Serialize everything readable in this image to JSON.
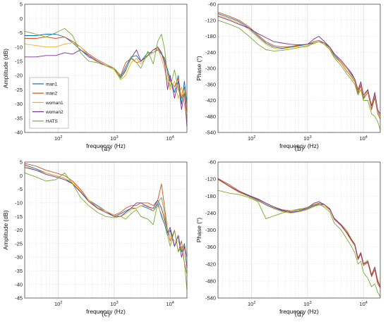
{
  "colors": {
    "man1": "#0072BD",
    "man2": "#D95319",
    "woman1": "#EDB120",
    "woman2": "#7E2F8E",
    "HATS": "#77AC30"
  },
  "legend": [
    "man1",
    "man2",
    "woman1",
    "woman2",
    "HATS"
  ],
  "chart_data": [
    {
      "panel": "(a)",
      "type": "line",
      "xscale": "log",
      "xlim": [
        25,
        20000
      ],
      "ylim": [
        -40,
        5
      ],
      "xlabel": "frequency (Hz)",
      "ylabel": "Amplitude (dB)",
      "grid": true,
      "legend_position": "left-middle",
      "yticks": [
        5,
        0,
        -5,
        -10,
        -15,
        -20,
        -25,
        -30,
        -35,
        -40
      ],
      "x": [
        25,
        40,
        60,
        90,
        130,
        180,
        250,
        350,
        500,
        700,
        1000,
        1300,
        1600,
        2000,
        2500,
        3000,
        4000,
        5000,
        6000,
        7000,
        8000,
        9000,
        10000,
        12000,
        14000,
        16000,
        18000,
        20000
      ],
      "series": [
        {
          "name": "man1",
          "values": [
            -6,
            -6,
            -5.5,
            -5.5,
            -6.5,
            -8.5,
            -11,
            -13.5,
            -15,
            -16.5,
            -18,
            -20.5,
            -17,
            -13.5,
            -13,
            -15,
            -12,
            -12,
            -11,
            -12.5,
            -14,
            -18,
            -21,
            -26,
            -20,
            -30,
            -22,
            -30
          ]
        },
        {
          "name": "man2",
          "values": [
            -7,
            -7,
            -6.5,
            -7,
            -6.5,
            -8,
            -10,
            -12.5,
            -14.5,
            -16,
            -17.5,
            -20,
            -15.5,
            -14,
            -15.5,
            -15,
            -13,
            -11,
            -10.5,
            -12,
            -15,
            -19,
            -22,
            -24,
            -21,
            -28,
            -24,
            -33
          ]
        },
        {
          "name": "woman1",
          "values": [
            -9,
            -9.5,
            -10,
            -10,
            -9,
            -8.5,
            -10,
            -13,
            -15.5,
            -16.5,
            -18,
            -21.5,
            -20,
            -15.5,
            -14,
            -16,
            -13,
            -12,
            -10.5,
            -14,
            -18,
            -22,
            -25,
            -22,
            -28,
            -24,
            -30,
            -35
          ]
        },
        {
          "name": "woman2",
          "values": [
            -13.5,
            -13.5,
            -13,
            -13,
            -12,
            -12.5,
            -11,
            -13,
            -15,
            -16.5,
            -17.5,
            -21,
            -18,
            -14,
            -11,
            -15,
            -13,
            -11,
            -10,
            -12,
            -16,
            -25,
            -20,
            -28,
            -22,
            -32,
            -26,
            -38
          ]
        },
        {
          "name": "HATS",
          "values": [
            -4.5,
            -5.5,
            -6.5,
            -5,
            -3.5,
            -6,
            -12,
            -15,
            -15.5,
            -16.5,
            -17.5,
            -21,
            -18.5,
            -13.5,
            -15.5,
            -17.5,
            -11.5,
            -16,
            -8,
            -5.5,
            -11,
            -20,
            -24,
            -18,
            -25,
            -28,
            -26,
            -30
          ]
        }
      ]
    },
    {
      "panel": "(b)",
      "type": "line",
      "xscale": "log",
      "xlim": [
        25,
        20000
      ],
      "ylim": [
        -540,
        -60
      ],
      "xlabel": "frequency (Hz)",
      "ylabel": "Phase (°)",
      "grid": true,
      "yticks": [
        -60,
        -120,
        -180,
        -240,
        -300,
        -360,
        -420,
        -480,
        -540
      ],
      "x": [
        25,
        40,
        60,
        90,
        130,
        180,
        250,
        350,
        500,
        700,
        1000,
        1300,
        1600,
        2000,
        2500,
        3000,
        4000,
        5000,
        6000,
        7000,
        8000,
        9000,
        10000,
        12000,
        14000,
        16000,
        18000,
        20000
      ],
      "series": [
        {
          "name": "man1",
          "values": [
            -95,
            -110,
            -125,
            -150,
            -180,
            -205,
            -220,
            -225,
            -220,
            -215,
            -210,
            -205,
            -200,
            -205,
            -220,
            -250,
            -275,
            -300,
            -320,
            -340,
            -390,
            -360,
            -410,
            -380,
            -450,
            -400,
            -460,
            -480
          ]
        },
        {
          "name": "man2",
          "values": [
            -90,
            -105,
            -120,
            -145,
            -175,
            -200,
            -215,
            -220,
            -218,
            -213,
            -210,
            -200,
            -195,
            -205,
            -225,
            -255,
            -280,
            -310,
            -330,
            -350,
            -395,
            -365,
            -415,
            -390,
            -455,
            -410,
            -470,
            -490
          ]
        },
        {
          "name": "woman1",
          "values": [
            -100,
            -115,
            -130,
            -155,
            -185,
            -210,
            -225,
            -228,
            -222,
            -218,
            -215,
            -208,
            -200,
            -210,
            -225,
            -255,
            -275,
            -300,
            -325,
            -345,
            -385,
            -355,
            -405,
            -385,
            -445,
            -395,
            -465,
            -480
          ]
        },
        {
          "name": "woman2",
          "values": [
            -105,
            -120,
            -135,
            -150,
            -170,
            -185,
            -200,
            -205,
            -210,
            -212,
            -210,
            -190,
            -180,
            -200,
            -220,
            -245,
            -270,
            -295,
            -315,
            -340,
            -380,
            -350,
            -400,
            -380,
            -440,
            -390,
            -455,
            -470
          ]
        },
        {
          "name": "HATS",
          "values": [
            -120,
            -135,
            -150,
            -180,
            -210,
            -230,
            -235,
            -233,
            -228,
            -222,
            -218,
            -205,
            -200,
            -210,
            -230,
            -260,
            -290,
            -320,
            -340,
            -360,
            -400,
            -380,
            -420,
            -420,
            -470,
            -480,
            -500,
            -530
          ]
        }
      ]
    },
    {
      "panel": "(c)",
      "type": "line",
      "xscale": "log",
      "xlim": [
        25,
        20000
      ],
      "ylim": [
        -45,
        5
      ],
      "xlabel": "frequency (Hz)",
      "ylabel": "Amplitude (dB)",
      "grid": true,
      "yticks": [
        5,
        0,
        -5,
        -10,
        -15,
        -20,
        -25,
        -30,
        -35,
        -40,
        -45
      ],
      "x": [
        25,
        40,
        60,
        90,
        130,
        180,
        250,
        350,
        500,
        700,
        1000,
        1300,
        1600,
        2000,
        2500,
        3000,
        4000,
        5000,
        6000,
        7000,
        8000,
        9000,
        10000,
        12000,
        14000,
        16000,
        18000,
        20000
      ],
      "series": [
        {
          "name": "man1",
          "values": [
            4,
            2.5,
            1,
            0,
            -1,
            -3,
            -6,
            -9,
            -11,
            -13,
            -15,
            -14,
            -13,
            -12,
            -12,
            -11,
            -12,
            -13,
            -10,
            -15,
            -18,
            -22,
            -20,
            -26,
            -22,
            -28,
            -25,
            -30
          ]
        },
        {
          "name": "man2",
          "values": [
            4.5,
            3.5,
            2,
            1,
            0,
            -2,
            -5,
            -9,
            -12,
            -13,
            -14.5,
            -13.5,
            -12,
            -11,
            -11,
            -10,
            -10,
            -11,
            -9,
            -3,
            -12,
            -20,
            -24,
            -20,
            -28,
            -24,
            -32,
            -36
          ]
        },
        {
          "name": "woman1",
          "values": [
            3.5,
            2,
            1,
            0,
            -1,
            -2.5,
            -5.5,
            -9,
            -11.5,
            -13,
            -14.5,
            -15,
            -14,
            -12.5,
            -12,
            -11,
            -11,
            -13,
            -11,
            -14,
            -17,
            -20,
            -22,
            -24,
            -24,
            -27,
            -26,
            -29
          ]
        },
        {
          "name": "woman2",
          "values": [
            3,
            2,
            0.5,
            -0.5,
            -1.5,
            -3,
            -6,
            -9.5,
            -12,
            -13.5,
            -15,
            -15,
            -13.5,
            -12,
            -10,
            -10,
            -11.5,
            -12,
            -9,
            -12,
            -16,
            -21,
            -19,
            -26,
            -22,
            -30,
            -26,
            -34
          ]
        },
        {
          "name": "HATS",
          "values": [
            1,
            -0.5,
            -2,
            -1.5,
            1,
            -3,
            -8,
            -11,
            -13.5,
            -15,
            -15.5,
            -15,
            -16,
            -14,
            -12.5,
            -15,
            -16,
            -18,
            -10,
            -8,
            -14,
            -22,
            -26,
            -20,
            -28,
            -26,
            -32,
            -42
          ]
        }
      ]
    },
    {
      "panel": "(d)",
      "type": "line",
      "xscale": "log",
      "xlim": [
        25,
        20000
      ],
      "ylim": [
        -540,
        -60
      ],
      "xlabel": "frequency (Hz)",
      "ylabel": "Phase (°)",
      "grid": true,
      "yticks": [
        -60,
        -120,
        -180,
        -240,
        -300,
        -360,
        -420,
        -480,
        -540
      ],
      "x": [
        25,
        40,
        60,
        90,
        130,
        180,
        250,
        350,
        500,
        700,
        1000,
        1300,
        1600,
        2000,
        2500,
        3000,
        4000,
        5000,
        6000,
        7000,
        8000,
        9000,
        10000,
        12000,
        14000,
        16000,
        18000,
        20000
      ],
      "series": [
        {
          "name": "man1",
          "values": [
            -120,
            -145,
            -165,
            -180,
            -195,
            -210,
            -222,
            -232,
            -238,
            -235,
            -225,
            -215,
            -210,
            -210,
            -225,
            -260,
            -280,
            -300,
            -330,
            -350,
            -400,
            -380,
            -420,
            -410,
            -460,
            -430,
            -480,
            -500
          ]
        },
        {
          "name": "man2",
          "values": [
            -118,
            -140,
            -162,
            -178,
            -192,
            -205,
            -218,
            -228,
            -232,
            -228,
            -220,
            -210,
            -205,
            -210,
            -228,
            -262,
            -285,
            -310,
            -335,
            -355,
            -405,
            -385,
            -425,
            -415,
            -465,
            -440,
            -490,
            -505
          ]
        },
        {
          "name": "woman1",
          "values": [
            -122,
            -147,
            -168,
            -182,
            -197,
            -212,
            -225,
            -235,
            -240,
            -236,
            -228,
            -218,
            -212,
            -215,
            -230,
            -258,
            -280,
            -300,
            -328,
            -350,
            -398,
            -378,
            -418,
            -405,
            -455,
            -430,
            -475,
            -495
          ]
        },
        {
          "name": "woman2",
          "values": [
            -120,
            -145,
            -165,
            -178,
            -190,
            -205,
            -218,
            -230,
            -236,
            -232,
            -222,
            -205,
            -200,
            -210,
            -226,
            -258,
            -282,
            -306,
            -332,
            -350,
            -400,
            -380,
            -420,
            -412,
            -460,
            -432,
            -482,
            -500
          ]
        },
        {
          "name": "HATS",
          "values": [
            -160,
            -170,
            -175,
            -185,
            -200,
            -260,
            -250,
            -240,
            -232,
            -226,
            -222,
            -212,
            -208,
            -220,
            -236,
            -275,
            -300,
            -330,
            -355,
            -380,
            -420,
            -410,
            -450,
            -470,
            -500,
            -490,
            -520,
            -535
          ]
        }
      ]
    }
  ],
  "captions": [
    "(a)",
    "(b)",
    "(c)",
    "(d)"
  ]
}
